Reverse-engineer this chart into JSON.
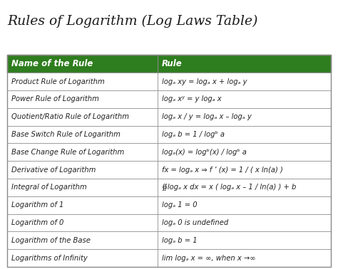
{
  "title": "Rules of Logarithm (Log Laws Table)",
  "title_fontsize": 13.5,
  "title_color": "#1a1a1a",
  "header": [
    "Name of the Rule",
    "Rule"
  ],
  "header_bg": "#2e7d1e",
  "header_text_color": "#ffffff",
  "header_fontsize": 8.5,
  "row_bg": "#ffffff",
  "border_color": "#888888",
  "text_color": "#222222",
  "row_fontsize": 7.2,
  "col_split": 0.465,
  "rows": [
    [
      "Product Rule of Logarithm",
      "logₐ xy = logₐ x + logₐ y"
    ],
    [
      "Power Rule of Logarithm",
      "logₐ xʸ = y logₐ x"
    ],
    [
      "Quotient/Ratio Rule of Logarithm",
      "logₐ x / y = logₐ x – logₐ y"
    ],
    [
      "Base Switch Rule of Logarithm",
      "logₐ b = 1 / logᵇ a"
    ],
    [
      "Base Change Rule of Logarithm",
      "logₐ(x) = logᵇ(x) / logᵇ a"
    ],
    [
      "Derivative of Logarithm",
      "fx = logₐ x ⇒ f ’ (x) = 1 / ( x ln(a) )"
    ],
    [
      "Integral of Logarithm",
      "∯logₐ x dx = x ( logₐ x – 1 / ln(a) ) + b"
    ],
    [
      "Logarithm of 1",
      "logₐ 1 = 0"
    ],
    [
      "Logarithm of 0",
      "logₐ 0 is undefined"
    ],
    [
      "Logarithm of the Base",
      "logₐ b = 1"
    ],
    [
      "Logarithms of Infinity",
      "lim logₐ x = ∞, when x →∞"
    ]
  ]
}
